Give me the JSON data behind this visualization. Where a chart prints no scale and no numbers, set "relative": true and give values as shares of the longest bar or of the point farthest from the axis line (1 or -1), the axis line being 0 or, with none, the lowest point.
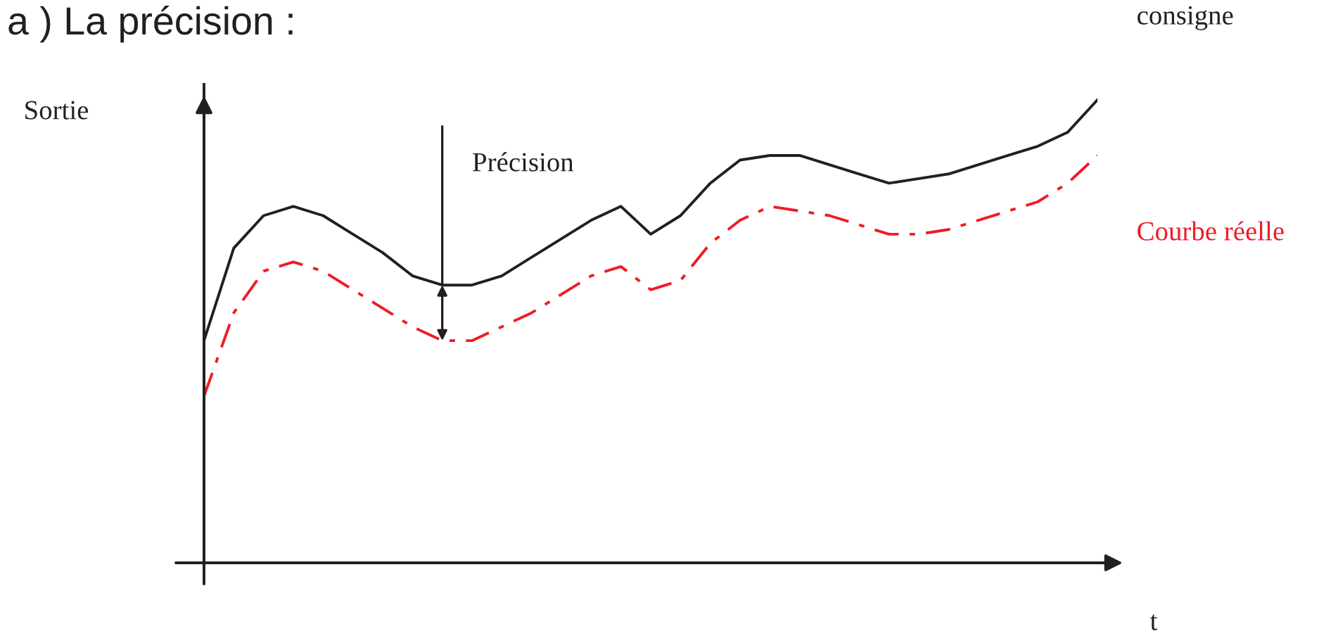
{
  "chart_data": {
    "type": "line",
    "relative": true,
    "title": "a ) La précision :",
    "xlabel": "t",
    "ylabel": "Sortie",
    "categories": [
      null,
      null,
      null,
      null,
      null,
      null,
      null,
      null,
      null,
      null,
      null,
      null,
      null,
      null,
      null,
      null,
      null,
      null,
      null,
      null,
      null,
      null,
      null,
      null,
      null,
      null,
      null,
      null,
      null,
      null,
      null
    ],
    "series": [
      {
        "name": "consigne",
        "color": "#231f20",
        "line_style": "solid",
        "values": [
          0.48,
          0.68,
          0.75,
          0.77,
          0.75,
          0.71,
          0.67,
          0.62,
          0.6,
          0.6,
          0.62,
          0.66,
          0.7,
          0.74,
          0.77,
          0.71,
          0.75,
          0.82,
          0.87,
          0.88,
          0.88,
          0.86,
          0.84,
          0.82,
          0.83,
          0.84,
          0.86,
          0.88,
          0.9,
          0.93,
          1.0
        ]
      },
      {
        "name": "Courbe réelle",
        "color": "#ee1c25",
        "line_style": "dashdot",
        "values": [
          0.36,
          0.54,
          0.63,
          0.65,
          0.63,
          0.59,
          0.55,
          0.51,
          0.48,
          0.48,
          0.51,
          0.54,
          0.58,
          0.62,
          0.64,
          0.59,
          0.61,
          0.69,
          0.74,
          0.77,
          0.76,
          0.75,
          0.73,
          0.71,
          0.71,
          0.72,
          0.74,
          0.76,
          0.78,
          0.82,
          0.88
        ]
      }
    ],
    "annotations": [
      "Précision"
    ],
    "legend": false,
    "grid": false
  }
}
